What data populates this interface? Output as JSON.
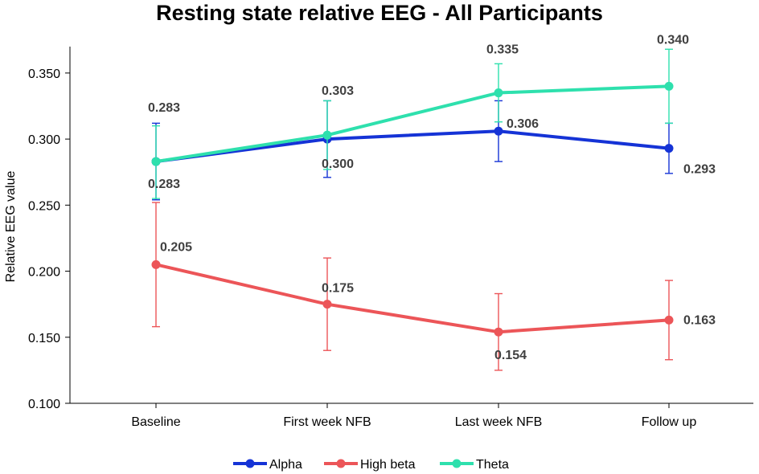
{
  "chart_data": {
    "type": "line",
    "title": "Resting state relative EEG - All Participants",
    "xlabel": "",
    "ylabel": "Relative EEG value",
    "categories": [
      "Baseline",
      "First week NFB",
      "Last week NFB",
      "Follow up"
    ],
    "ylim": [
      0.1,
      0.37
    ],
    "yticks": [
      0.1,
      0.15,
      0.2,
      0.25,
      0.3,
      0.35
    ],
    "ytick_labels": [
      "0.100",
      "0.150",
      "0.200",
      "0.250",
      "0.300",
      "0.350"
    ],
    "grid": false,
    "legend_position": "bottom-center",
    "series": [
      {
        "name": "Alpha",
        "color": "#1533d6",
        "values": [
          0.283,
          0.3,
          0.306,
          0.293
        ],
        "labels": [
          "0.283",
          "0.300",
          "0.306",
          "0.293"
        ],
        "err_low": [
          0.254,
          0.271,
          0.283,
          0.274
        ],
        "err_high": [
          0.312,
          0.329,
          0.329,
          0.312
        ]
      },
      {
        "name": "High beta",
        "color": "#ec5558",
        "values": [
          0.205,
          0.175,
          0.154,
          0.163
        ],
        "labels": [
          "0.205",
          "0.175",
          "0.154",
          "0.163"
        ],
        "err_low": [
          0.158,
          0.14,
          0.125,
          0.133
        ],
        "err_high": [
          0.252,
          0.21,
          0.183,
          0.193
        ]
      },
      {
        "name": "Theta",
        "color": "#2ee0ad",
        "values": [
          0.283,
          0.303,
          0.335,
          0.34
        ],
        "labels": [
          "0.283",
          "0.303",
          "0.335",
          "0.340"
        ],
        "err_low": [
          0.255,
          0.277,
          0.313,
          0.312
        ],
        "err_high": [
          0.31,
          0.329,
          0.357,
          0.368
        ]
      }
    ]
  }
}
